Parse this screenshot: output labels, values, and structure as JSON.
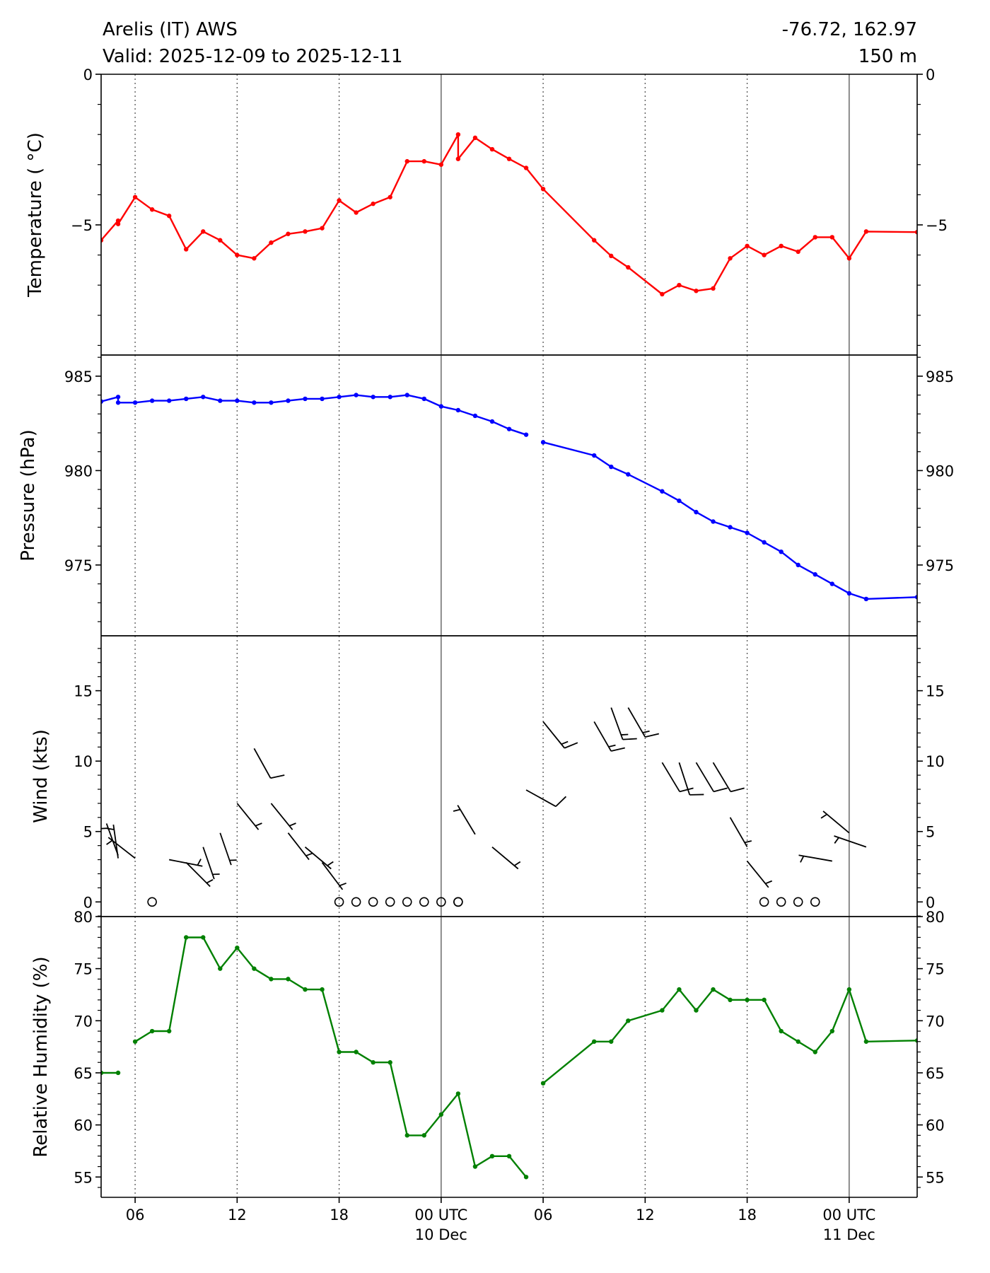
{
  "header": {
    "title": "Arelis (IT) AWS",
    "valid": "Valid: 2025-12-09 to 2025-12-11",
    "coords": "-76.72, 162.97",
    "elevation": "150 m"
  },
  "chart_data": {
    "type": "line",
    "x_unit": "hours since 2025-12-09 00 UTC",
    "xlim": [
      4,
      52
    ],
    "x_ticks": [
      {
        "h": 6,
        "label": "06",
        "sub": ""
      },
      {
        "h": 12,
        "label": "12",
        "sub": ""
      },
      {
        "h": 18,
        "label": "18",
        "sub": ""
      },
      {
        "h": 24,
        "label": "00 UTC",
        "sub": "10 Dec"
      },
      {
        "h": 30,
        "label": "06",
        "sub": ""
      },
      {
        "h": 36,
        "label": "12",
        "sub": ""
      },
      {
        "h": 42,
        "label": "18",
        "sub": ""
      },
      {
        "h": 48,
        "label": "00 UTC",
        "sub": "11 Dec"
      }
    ],
    "panels": [
      {
        "id": "temperature",
        "ylabel": "Temperature ( °C)",
        "color": "#ff0000",
        "ylim": [
          -9.32,
          0
        ],
        "major": 5,
        "minor": 1,
        "ytick_labels": [
          {
            "v": 0,
            "t": "0"
          },
          {
            "v": -5,
            "t": "−5"
          }
        ],
        "points": [
          [
            4,
            -5.51
          ],
          [
            5,
            -4.86
          ],
          [
            5,
            -4.97
          ],
          [
            6,
            -4.08
          ],
          [
            7,
            -4.49
          ],
          [
            8,
            -4.7
          ],
          [
            9,
            -5.81
          ],
          [
            10,
            -5.22
          ],
          [
            11,
            -5.51
          ],
          [
            12,
            -6.0
          ],
          [
            13,
            -6.11
          ],
          [
            14,
            -5.59
          ],
          [
            15,
            -5.3
          ],
          [
            16,
            -5.22
          ],
          [
            17,
            -5.11
          ],
          [
            18,
            -4.19
          ],
          [
            19,
            -4.59
          ],
          [
            20,
            -4.3
          ],
          [
            21,
            -4.08
          ],
          [
            22,
            -2.89
          ],
          [
            23,
            -2.89
          ],
          [
            24,
            -3.0
          ],
          [
            25,
            -2.0
          ],
          [
            25,
            -2.81
          ],
          [
            26,
            -2.11
          ],
          [
            27,
            -2.49
          ],
          [
            28,
            -2.81
          ],
          [
            29,
            -3.11
          ],
          [
            30,
            -3.81
          ],
          [
            33,
            -5.51
          ],
          [
            34,
            -6.03
          ],
          [
            35,
            -6.41
          ],
          [
            37,
            -7.3
          ],
          [
            38,
            -7.0
          ],
          [
            39,
            -7.19
          ],
          [
            40,
            -7.11
          ],
          [
            41,
            -6.11
          ],
          [
            42,
            -5.7
          ],
          [
            43,
            -6.0
          ],
          [
            44,
            -5.7
          ],
          [
            45,
            -5.89
          ],
          [
            46,
            -5.41
          ],
          [
            47,
            -5.41
          ],
          [
            48,
            -6.11
          ],
          [
            49,
            -5.22
          ],
          [
            52,
            -5.24
          ]
        ]
      },
      {
        "id": "pressure",
        "ylabel": "Pressure (hPa)",
        "color": "#0000ff",
        "ylim": [
          971.25,
          986.12
        ],
        "major": 5,
        "minor": 1,
        "ytick_labels": [
          {
            "v": 985,
            "t": "985"
          },
          {
            "v": 980,
            "t": "980"
          },
          {
            "v": 975,
            "t": "975"
          }
        ],
        "points": [
          [
            4,
            983.66
          ],
          [
            5,
            983.9
          ],
          [
            5,
            983.6
          ],
          [
            6,
            983.6
          ],
          [
            7,
            983.7
          ],
          [
            8,
            983.7
          ],
          [
            9,
            983.8
          ],
          [
            10,
            983.9
          ],
          [
            11,
            983.7
          ],
          [
            12,
            983.7
          ],
          [
            13,
            983.6
          ],
          [
            14,
            983.6
          ],
          [
            15,
            983.7
          ],
          [
            16,
            983.8
          ],
          [
            17,
            983.8
          ],
          [
            18,
            983.9
          ],
          [
            19,
            984.0
          ],
          [
            20,
            983.9
          ],
          [
            21,
            983.9
          ],
          [
            22,
            984.0
          ],
          [
            23,
            983.8
          ],
          [
            24,
            983.4
          ],
          [
            25,
            983.2
          ],
          [
            26,
            982.9
          ],
          [
            27,
            982.6
          ],
          [
            28,
            982.2
          ],
          [
            29,
            981.9
          ],
          null,
          [
            30,
            981.5
          ],
          [
            33,
            980.8
          ],
          [
            34,
            980.2
          ],
          [
            35,
            979.8
          ],
          [
            37,
            978.9
          ],
          [
            38,
            978.4
          ],
          [
            39,
            977.8
          ],
          [
            40,
            977.3
          ],
          [
            41,
            977.0
          ],
          [
            42,
            976.7
          ],
          [
            43,
            976.2
          ],
          [
            44,
            975.7
          ],
          [
            45,
            975.0
          ],
          [
            46,
            974.5
          ],
          [
            47,
            974.0
          ],
          [
            48,
            973.5
          ],
          [
            49,
            973.2
          ],
          [
            52,
            973.3
          ]
        ]
      },
      {
        "id": "wind",
        "ylabel": "Wind (kts)",
        "color": "#000000",
        "ylim": [
          -1.04,
          18.9
        ],
        "major": 5,
        "minor": 1,
        "ytick_labels": [
          {
            "v": 0,
            "t": "0"
          },
          {
            "v": 5,
            "t": "5"
          },
          {
            "v": 10,
            "t": "10"
          },
          {
            "v": 15,
            "t": "15"
          }
        ],
        "barbs": [
          {
            "h": 4,
            "spd": 4.5,
            "dir": 345
          },
          {
            "h": 5,
            "spd": 3.1,
            "dir": 352
          },
          {
            "h": 5,
            "spd": 3.3,
            "dir": 340
          },
          {
            "h": 6,
            "spd": 3.1,
            "dir": 308
          },
          {
            "h": 8,
            "spd": 3.0,
            "dir": 101
          },
          {
            "h": 9,
            "spd": 2.8,
            "dir": 135
          },
          {
            "h": 10,
            "spd": 3.9,
            "dir": 161
          },
          {
            "h": 11,
            "spd": 4.9,
            "dir": 161
          },
          {
            "h": 12,
            "spd": 7.0,
            "dir": 141
          },
          {
            "h": 13,
            "spd": 10.9,
            "dir": 151
          },
          {
            "h": 14,
            "spd": 7.0,
            "dir": 141
          },
          {
            "h": 15,
            "spd": 4.9,
            "dir": 142
          },
          {
            "h": 16,
            "spd": 3.9,
            "dir": 130
          },
          {
            "h": 17,
            "spd": 2.8,
            "dir": 143
          },
          {
            "h": 26,
            "spd": 4.8,
            "dir": 329
          },
          {
            "h": 27,
            "spd": 3.9,
            "dir": 130
          },
          {
            "h": 29,
            "spd": 7.95,
            "dir": 119
          },
          {
            "h": 30,
            "spd": 12.8,
            "dir": 141
          },
          {
            "h": 33,
            "spd": 12.8,
            "dir": 150
          },
          {
            "h": 34,
            "spd": 13.8,
            "dir": 160
          },
          {
            "h": 35,
            "spd": 13.8,
            "dir": 150
          },
          {
            "h": 37,
            "spd": 9.9,
            "dir": 149
          },
          {
            "h": 38,
            "spd": 9.9,
            "dir": 162
          },
          {
            "h": 39,
            "spd": 9.9,
            "dir": 149
          },
          {
            "h": 40,
            "spd": 9.9,
            "dir": 149
          },
          {
            "h": 41,
            "spd": 6.0,
            "dir": 150
          },
          {
            "h": 42,
            "spd": 2.9,
            "dir": 141
          },
          {
            "h": 47,
            "spd": 2.9,
            "dir": 280
          },
          {
            "h": 48,
            "spd": 4.9,
            "dir": 310
          },
          {
            "h": 49,
            "spd": 3.9,
            "dir": 289
          }
        ],
        "calm_hours": [
          7,
          18,
          19,
          20,
          21,
          22,
          23,
          24,
          25,
          25,
          43,
          44,
          45,
          46
        ]
      },
      {
        "id": "humidity",
        "ylabel": "Relative Humidity (%)",
        "color": "#008000",
        "ylim": [
          53.05,
          80
        ],
        "major": 5,
        "minor": 1,
        "ytick_labels": [
          {
            "v": 80,
            "t": "80"
          },
          {
            "v": 75,
            "t": "75"
          },
          {
            "v": 70,
            "t": "70"
          },
          {
            "v": 65,
            "t": "65"
          },
          {
            "v": 60,
            "t": "60"
          },
          {
            "v": 55,
            "t": "55"
          }
        ],
        "points": [
          [
            4,
            65
          ],
          [
            5,
            65
          ],
          null,
          [
            6,
            68
          ],
          [
            7,
            69
          ],
          [
            8,
            69
          ],
          [
            9,
            78
          ],
          [
            10,
            78
          ],
          [
            11,
            75
          ],
          [
            12,
            77
          ],
          [
            13,
            75
          ],
          [
            14,
            74
          ],
          [
            15,
            74
          ],
          [
            16,
            73
          ],
          [
            17,
            73
          ],
          [
            18,
            67
          ],
          [
            19,
            67
          ],
          [
            20,
            66
          ],
          [
            21,
            66
          ],
          [
            22,
            59
          ],
          [
            23,
            59
          ],
          [
            24,
            61
          ],
          [
            25,
            63
          ],
          [
            26,
            56
          ],
          [
            27,
            57
          ],
          [
            28,
            57
          ],
          [
            29,
            55
          ],
          null,
          [
            30,
            64
          ],
          [
            33,
            68
          ],
          [
            34,
            68
          ],
          [
            35,
            70
          ],
          [
            37,
            71
          ],
          [
            38,
            73
          ],
          [
            39,
            71
          ],
          [
            40,
            73
          ],
          [
            41,
            72
          ],
          [
            42,
            72
          ],
          [
            43,
            72
          ],
          [
            44,
            69
          ],
          [
            45,
            68
          ],
          [
            46,
            67
          ],
          [
            47,
            69
          ],
          [
            48,
            73
          ],
          [
            49,
            68
          ],
          [
            52,
            68.1
          ]
        ]
      }
    ],
    "vlines": {
      "dotted_hours": [
        6,
        12,
        18,
        30,
        36,
        42
      ],
      "solid_hours": [
        24,
        48
      ],
      "solid_color": "#808080"
    },
    "grid": false
  }
}
